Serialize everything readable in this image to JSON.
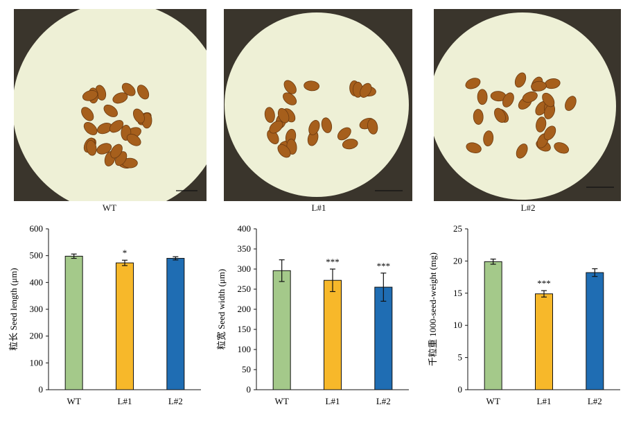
{
  "photos": [
    {
      "caption": "WT"
    },
    {
      "caption": "L#1"
    },
    {
      "caption": "L#2"
    }
  ],
  "colors": {
    "WT": "#a4c98a",
    "L#1": "#f7b82a",
    "L#2": "#1f6db3",
    "dish": "#eef0d6",
    "seed": "#a65f1c"
  },
  "chart_data": [
    {
      "type": "bar",
      "categories": [
        "WT",
        "L#1",
        "L#2"
      ],
      "values": [
        498,
        473,
        490
      ],
      "errors": [
        8,
        10,
        6
      ],
      "significance": [
        "",
        "*",
        ""
      ],
      "title": "",
      "xlabel": "",
      "ylabel": "粒长 Seed length (μm)",
      "ylim": [
        0,
        600
      ],
      "yticks": [
        0,
        100,
        200,
        300,
        400,
        500,
        600
      ]
    },
    {
      "type": "bar",
      "categories": [
        "WT",
        "L#1",
        "L#2"
      ],
      "values": [
        296,
        272,
        255
      ],
      "errors": [
        27,
        28,
        35
      ],
      "significance": [
        "",
        "***",
        "***"
      ],
      "title": "",
      "xlabel": "",
      "ylabel": "粒宽 Seed width (μm)",
      "ylim": [
        0,
        400
      ],
      "yticks": [
        0,
        50,
        100,
        150,
        200,
        250,
        300,
        350,
        400
      ]
    },
    {
      "type": "bar",
      "categories": [
        "WT",
        "L#1",
        "L#2"
      ],
      "values": [
        19.9,
        14.9,
        18.2
      ],
      "errors": [
        0.4,
        0.5,
        0.6
      ],
      "significance": [
        "",
        "***",
        ""
      ],
      "title": "",
      "xlabel": "",
      "ylabel": "千粒重 1000-seed-weight (mg)",
      "ylim": [
        0,
        25
      ],
      "yticks": [
        0,
        5,
        10,
        15,
        20,
        25
      ]
    }
  ]
}
